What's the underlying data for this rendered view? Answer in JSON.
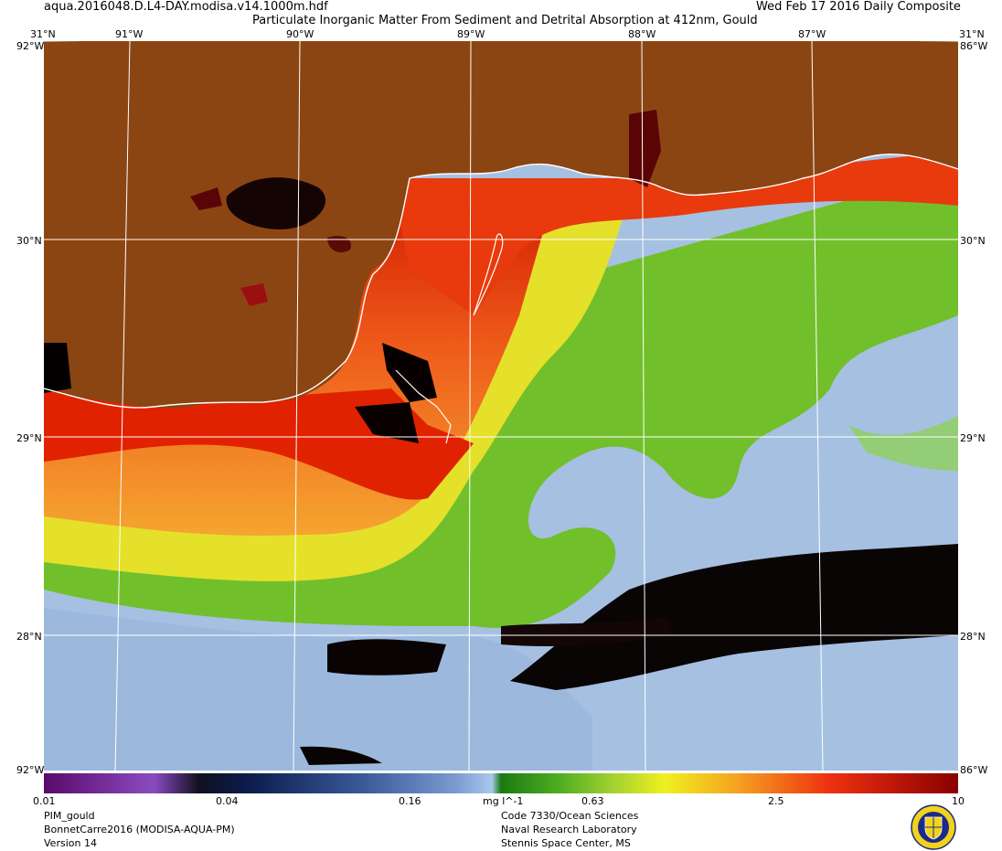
{
  "header": {
    "filename": "aqua.2016048.D.L4-DAY.modisa.v14.1000m.hdf",
    "title": "Particulate Inorganic Matter From Sediment and Detrital Absorption at 412nm, Gould",
    "date": "Wed Feb 17 2016 Daily Composite"
  },
  "axes": {
    "lon_top": [
      "91°W",
      "90°W",
      "89°W",
      "88°W",
      "87°W"
    ],
    "lat_left": [
      "31°N",
      "30°N",
      "29°N",
      "28°N"
    ],
    "lat_right": [
      "31°N",
      "30°N",
      "29°N",
      "28°N"
    ],
    "corner_top_left": "92°W",
    "corner_top_right": "86°W",
    "corner_bottom_left": "92°W",
    "corner_bottom_right": "86°W"
  },
  "colorbar": {
    "labels": [
      "0.01",
      "0.04",
      "0.16",
      "0.63",
      "2.5",
      "10"
    ],
    "unit": "mg l^-1"
  },
  "footer": {
    "product": "PIM_gould",
    "project": "BonnetCarre2016 (MODISA-AQUA-PM)",
    "version": "Version 14",
    "org_line1": "Code 7330/Ocean Sciences",
    "org_line2": "Naval Research Laboratory",
    "org_line3": "Stennis Space Center, MS"
  },
  "colors": {
    "land": "#8b4513",
    "low_water": "#a7c2e6",
    "high_sediment": "#cc0000",
    "no_data": "#000000",
    "grid": "#ffffff"
  }
}
